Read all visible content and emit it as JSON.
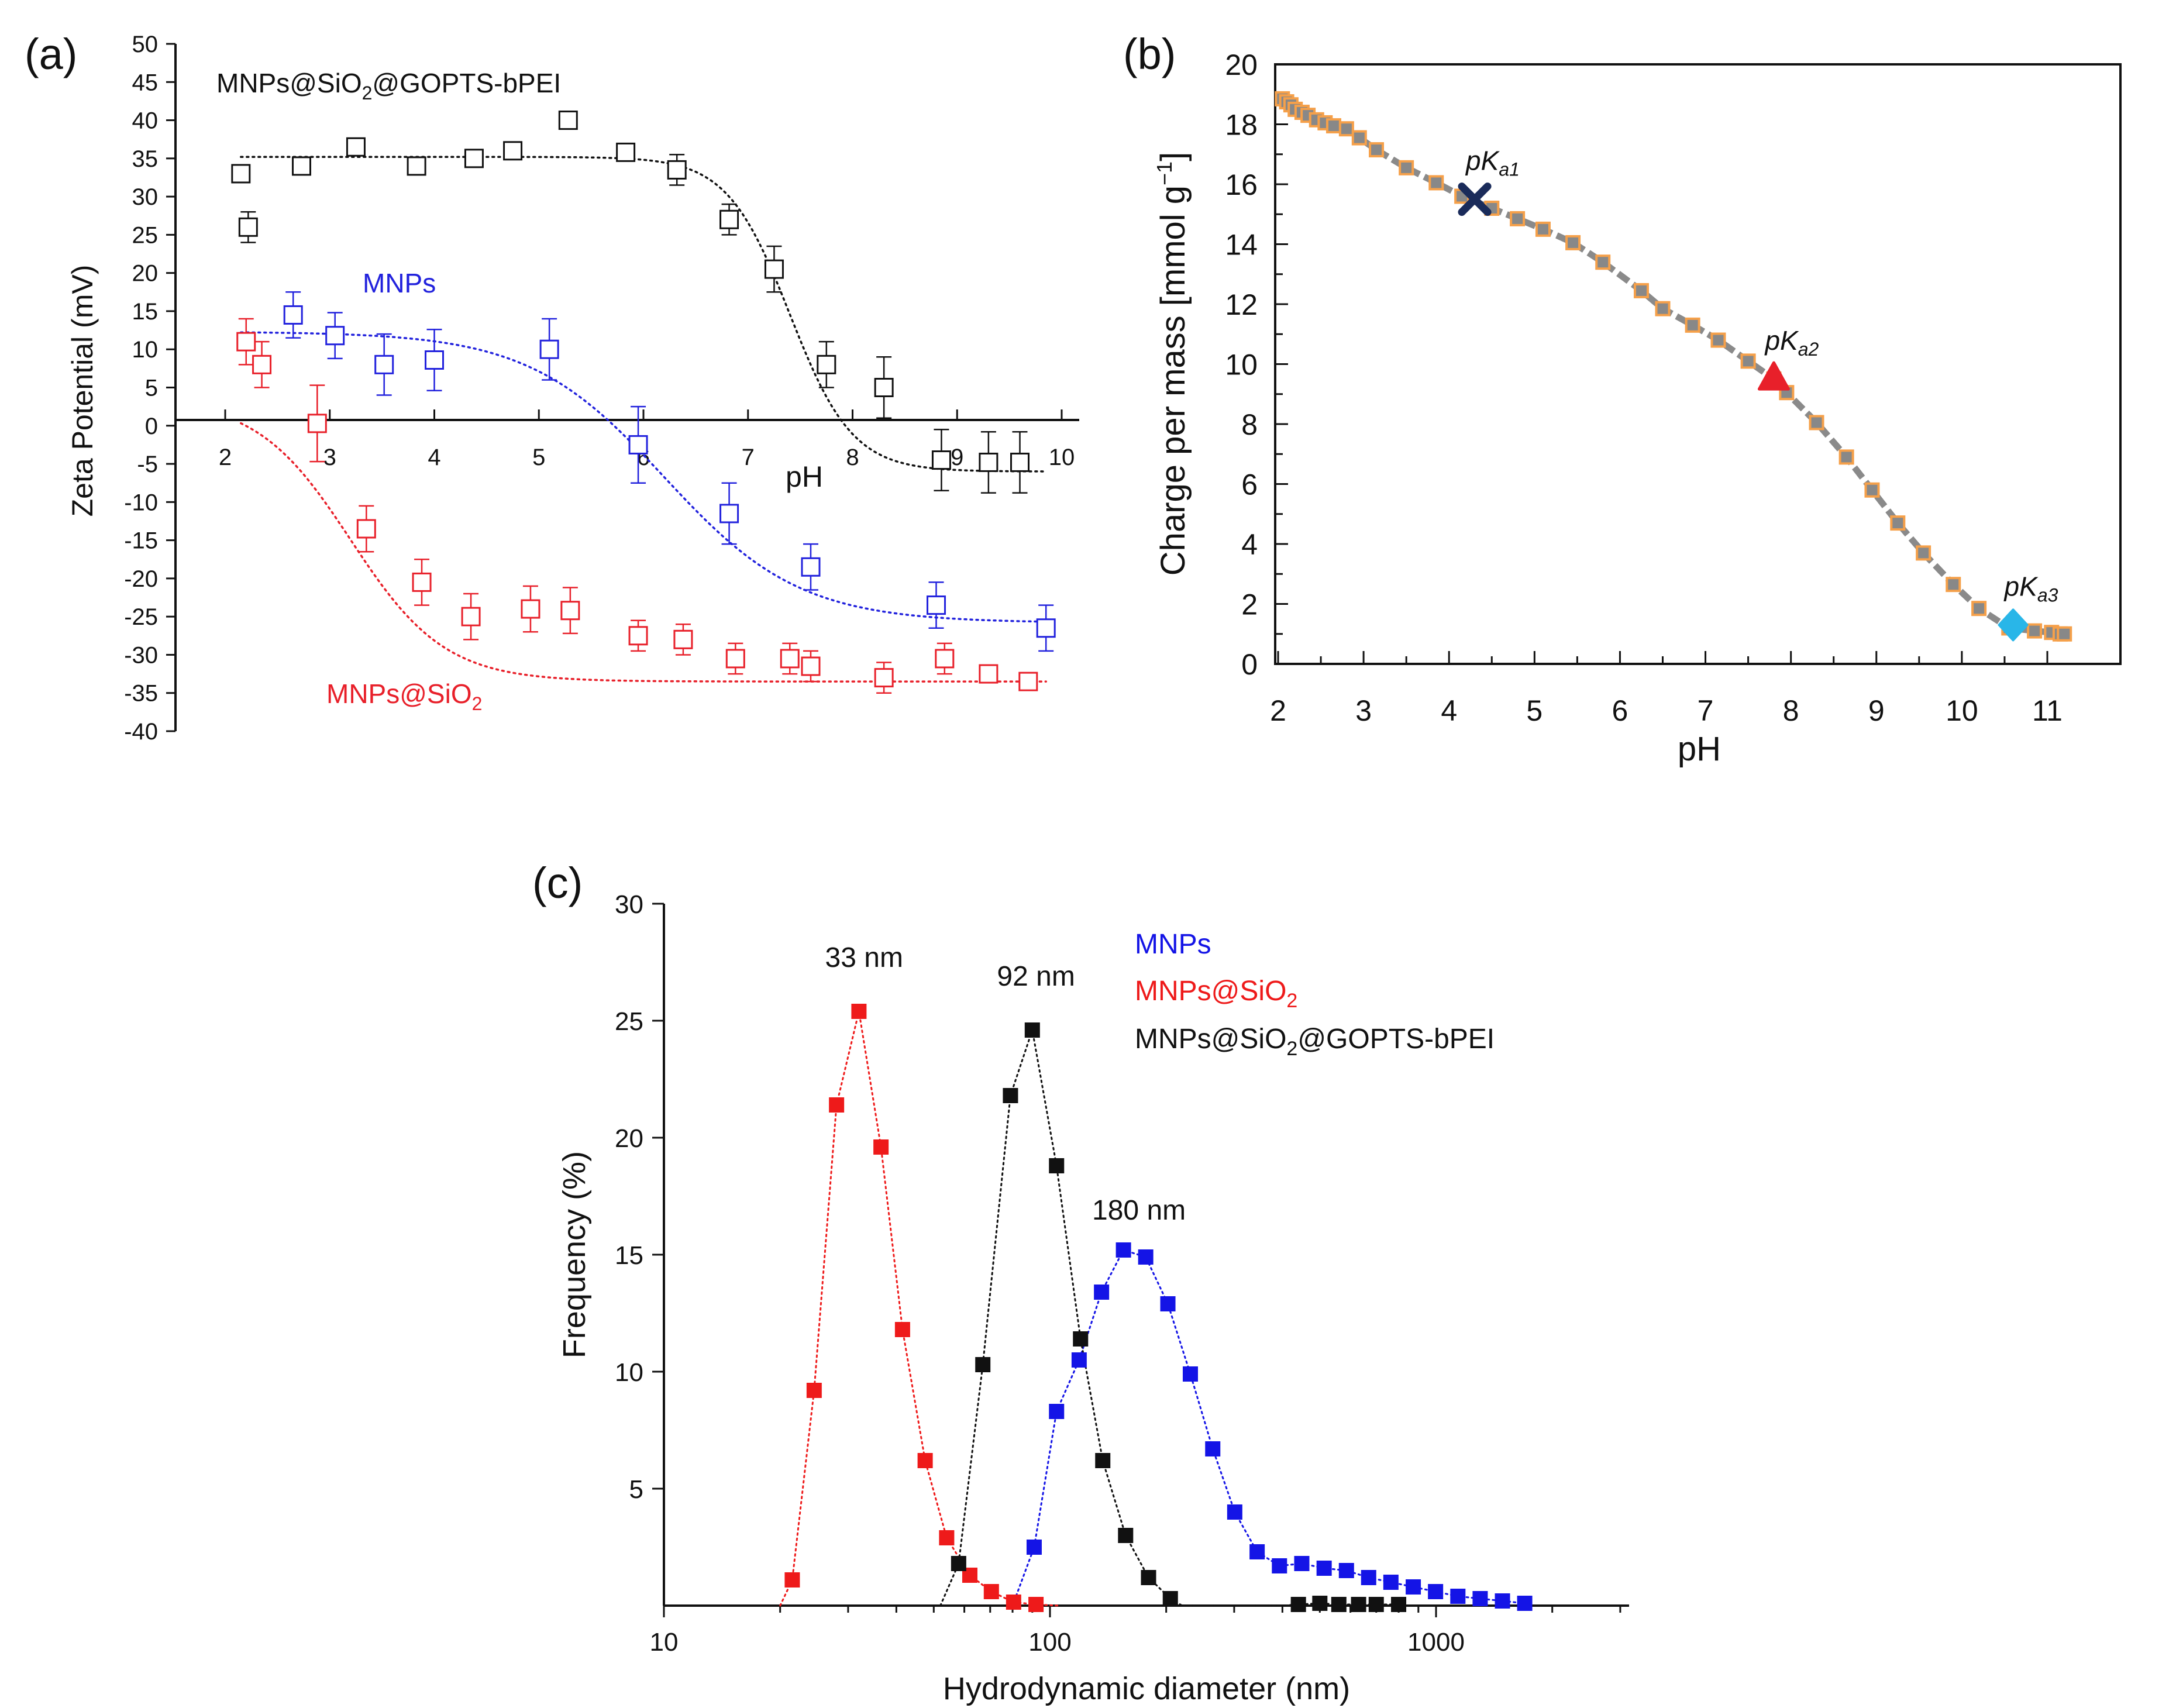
{
  "panel_labels": [
    "(a)",
    "(b)",
    "(c)"
  ],
  "chart_data": [
    {
      "panel": "(a)",
      "type": "scatter",
      "xlabel": "pH",
      "ylabel": "Zeta Potential (mV)",
      "xlim": [
        1.7,
        10.2
      ],
      "ylim": [
        -40,
        50
      ],
      "xticks": [
        "2",
        "3",
        "4",
        "5",
        "6",
        "7",
        "8",
        "9",
        "10"
      ],
      "yticks": [
        "50",
        "45",
        "40",
        "35",
        "30",
        "25",
        "20",
        "15",
        "10",
        "5",
        "0",
        "-5",
        "-10",
        "-15",
        "-20",
        "-25",
        "-30",
        "-35",
        "-40"
      ],
      "series": [
        {
          "name": "MNPs@SiO",
          "name_sub": "2",
          "name_tail": "@GOPTS-bPEI",
          "color": "#111111",
          "marker": "open-square",
          "x": [
            2.15,
            2.22,
            2.73,
            3.25,
            3.83,
            4.38,
            4.75,
            5.28,
            5.83,
            6.32,
            6.82,
            7.25,
            7.75,
            8.3,
            8.85,
            9.3,
            9.6
          ],
          "y": [
            33,
            26,
            34,
            36.5,
            34,
            35,
            36,
            40,
            35.8,
            33.5,
            27,
            20.5,
            8,
            5,
            -4.5,
            -4.8,
            -4.8
          ],
          "err": [
            1,
            2,
            1,
            1,
            1,
            1,
            1,
            1,
            1,
            2,
            2,
            3,
            3,
            4,
            4,
            4,
            4
          ],
          "fit": {
            "top": 35.2,
            "bottom": -6,
            "x0": 7.4,
            "k": 0.3
          }
        },
        {
          "name": "MNPs",
          "color": "#2222dd",
          "marker": "open-square",
          "x": [
            2.65,
            3.05,
            3.52,
            4.0,
            5.1,
            5.95,
            6.82,
            7.6,
            8.8,
            9.85
          ],
          "y": [
            14.5,
            11.8,
            8,
            8.6,
            10,
            -2.5,
            -11.5,
            -18.5,
            -23.5,
            -26.5
          ],
          "err": [
            3,
            3,
            4,
            4,
            4,
            5,
            4,
            3,
            3,
            3
          ],
          "fit": {
            "top": 12.3,
            "bottom": -25.8,
            "x0": 6.2,
            "k": 0.65
          }
        },
        {
          "name": "MNPs@SiO",
          "name_sub": "2",
          "name_tail": "",
          "color": "#e8202a",
          "marker": "open-square",
          "x": [
            2.2,
            2.35,
            2.88,
            3.35,
            3.88,
            4.35,
            4.92,
            5.3,
            5.95,
            6.38,
            6.88,
            7.4,
            7.6,
            8.3,
            8.88,
            9.3,
            9.68
          ],
          "y": [
            11,
            8,
            0.3,
            -13.5,
            -20.5,
            -25,
            -24,
            -24.2,
            -27.5,
            -28,
            -30.5,
            -30.5,
            -31.5,
            -33,
            -30.5,
            -32.5,
            -33.5
          ],
          "err": [
            3,
            3,
            5,
            3,
            3,
            3,
            3,
            3,
            2,
            2,
            2,
            2,
            2,
            2,
            2,
            1,
            1
          ],
          "fit": {
            "top": 3.6,
            "bottom": -33.5,
            "x0": 3.2,
            "k": 0.45,
            "start": 2.15
          }
        }
      ]
    },
    {
      "panel": "(b)",
      "type": "line",
      "xlabel": "pH",
      "ylabel_text": "Charge per mass [mmol g",
      "ylabel_sup": "−1",
      "ylabel_close": "]",
      "xlim": [
        2,
        11.5
      ],
      "ylim": [
        0,
        20
      ],
      "xticks": [
        "2",
        "3",
        "4",
        "5",
        "6",
        "7",
        "8",
        "9",
        "10",
        "11"
      ],
      "yticks": [
        "0",
        "2",
        "4",
        "6",
        "8",
        "10",
        "12",
        "14",
        "16",
        "18",
        "20"
      ],
      "series": [
        {
          "name": "titration",
          "line_color": "#8a8a8a",
          "marker_color": "#f5a04a",
          "x": [
            2.05,
            2.1,
            2.15,
            2.2,
            2.28,
            2.35,
            2.45,
            2.55,
            2.65,
            2.8,
            2.95,
            3.15,
            3.5,
            3.85,
            4.15,
            4.5,
            4.8,
            5.1,
            5.45,
            5.8,
            6.25,
            6.5,
            6.85,
            7.15,
            7.5,
            7.8,
            7.95,
            8.3,
            8.65,
            8.95,
            9.25,
            9.55,
            9.9,
            10.2,
            10.55,
            10.85,
            11.05,
            11.15,
            11.2
          ],
          "y": [
            18.85,
            18.75,
            18.65,
            18.5,
            18.4,
            18.3,
            18.15,
            18.05,
            17.95,
            17.85,
            17.55,
            17.15,
            16.55,
            16.05,
            15.6,
            15.2,
            14.85,
            14.5,
            14.05,
            13.4,
            12.45,
            11.85,
            11.3,
            10.8,
            10.1,
            9.5,
            9.05,
            8.05,
            6.9,
            5.8,
            4.7,
            3.7,
            2.65,
            1.85,
            1.2,
            1.1,
            1.05,
            1.0,
            1.0
          ]
        }
      ],
      "annotations": [
        {
          "label": "pK",
          "sub": "a1",
          "x": 4.3,
          "y": 15.5,
          "marker": "x",
          "color": "#1a2b5a"
        },
        {
          "label": "pK",
          "sub": "a2",
          "x": 7.8,
          "y": 9.5,
          "marker": "triangle",
          "color": "#e8202a"
        },
        {
          "label": "pK",
          "sub": "a3",
          "x": 10.6,
          "y": 1.3,
          "marker": "diamond",
          "color": "#29b6e8"
        }
      ]
    },
    {
      "panel": "(c)",
      "type": "scatter",
      "xscale": "log",
      "xlabel": "Hydrodynamic diameter (nm)",
      "ylabel": "Frequency (%)",
      "xlim": [
        10,
        3000
      ],
      "ylim": [
        0,
        30
      ],
      "xticks": [
        "10",
        "100",
        "1000"
      ],
      "yticks": [
        "5",
        "10",
        "15",
        "20",
        "25",
        "30"
      ],
      "series": [
        {
          "name": "MNPs",
          "color": "#1414e6",
          "x": [
            80,
            91,
            104,
            119,
            136,
            155,
            177,
            202,
            231,
            264,
            301,
            344,
            393,
            449,
            513,
            586,
            669,
            764,
            873,
            997,
            1139,
            1301,
            1486,
            1697
          ],
          "y": [
            0,
            2.5,
            8.3,
            10.5,
            13.4,
            15.2,
            14.9,
            12.9,
            9.9,
            6.7,
            4.0,
            2.3,
            1.7,
            1.8,
            1.6,
            1.5,
            1.2,
            1.0,
            0.8,
            0.6,
            0.4,
            0.3,
            0.2,
            0.1
          ]
        },
        {
          "name": "MNPs@SiO",
          "name_sub": "2",
          "name_tail": "",
          "color": "#ee1a1a",
          "x": [
            20,
            21.5,
            24.5,
            28,
            32,
            36.5,
            41.5,
            47.5,
            54,
            62,
            70.5,
            80.5,
            92,
            105
          ],
          "y": [
            0,
            1.1,
            9.2,
            21.4,
            25.4,
            19.6,
            11.8,
            6.2,
            2.9,
            1.3,
            0.6,
            0.15,
            0.05,
            0
          ],
          "fit": true
        },
        {
          "name": "MNPs@SiO",
          "name_sub": "2",
          "name_tail": "@GOPTS-bPEI",
          "color": "#111111",
          "x": [
            52,
            58,
            67,
            79,
            90,
            104,
            120,
            137,
            157,
            180,
            205,
            220,
            400,
            440,
            500,
            560,
            630,
            700,
            800
          ],
          "y": [
            0,
            1.8,
            10.3,
            21.8,
            24.6,
            18.8,
            11.4,
            6.2,
            3.0,
            1.2,
            0.3,
            0,
            0,
            0.05,
            0.1,
            0.05,
            0.05,
            0.05,
            0.05
          ]
        }
      ],
      "annotations": [
        {
          "text": "33 nm",
          "x": 33,
          "y": 27.3
        },
        {
          "text": "92 nm",
          "x": 92,
          "y": 26.5
        },
        {
          "text": "180 nm",
          "x": 170,
          "y": 16.5
        }
      ]
    }
  ]
}
